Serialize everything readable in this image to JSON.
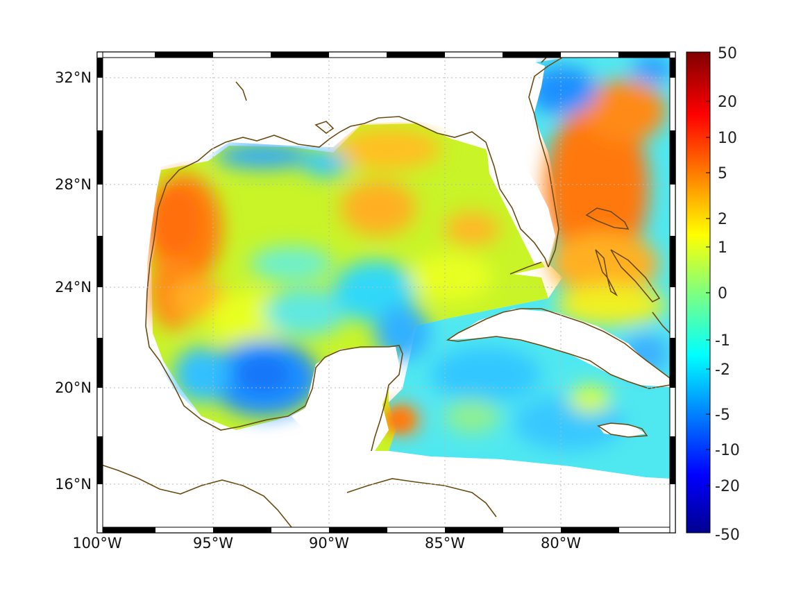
{
  "map": {
    "x_tick_labels": [
      "100°W",
      "95°W",
      "90°W",
      "85°W",
      "80°W"
    ],
    "y_tick_labels": [
      "32°N",
      "28°N",
      "24°N",
      "20°N",
      "16°N"
    ],
    "lon_range": [
      -100,
      -75.2
    ],
    "lat_range": [
      14.2,
      33.0
    ],
    "grid": true,
    "coastline_color": "#6b4a10",
    "frame_style": "alternating black/white border"
  },
  "colorbar": {
    "labels": [
      "50",
      "20",
      "10",
      "5",
      "2",
      "1",
      "0",
      "-1",
      "-2",
      "-5",
      "-10",
      "-20",
      "-50"
    ],
    "colormap": "jet",
    "orientation": "vertical",
    "placement": "right"
  }
}
